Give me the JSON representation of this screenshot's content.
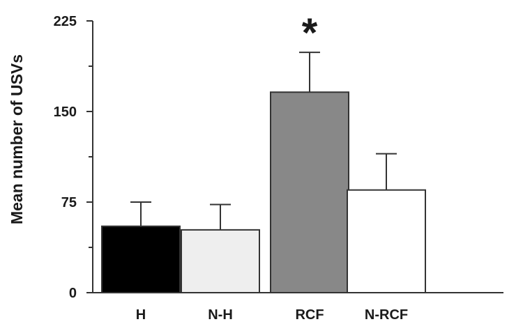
{
  "chart_data": {
    "type": "bar",
    "title": "",
    "xlabel": "",
    "ylabel": "Mean number of USVs",
    "ylim": [
      0,
      225
    ],
    "yticks": [
      0,
      75,
      150,
      225
    ],
    "grid": false,
    "categories": [
      "H",
      "N-H",
      "RCF",
      "N-RCF"
    ],
    "series": [
      {
        "values": [
          55,
          52,
          166,
          85
        ],
        "errors": [
          20,
          21,
          33,
          30
        ],
        "colors": [
          "#000000",
          "#eeeeee",
          "#888888",
          "#ffffff"
        ]
      }
    ],
    "annotations": [
      {
        "category": "RCF",
        "text": "*"
      }
    ]
  }
}
